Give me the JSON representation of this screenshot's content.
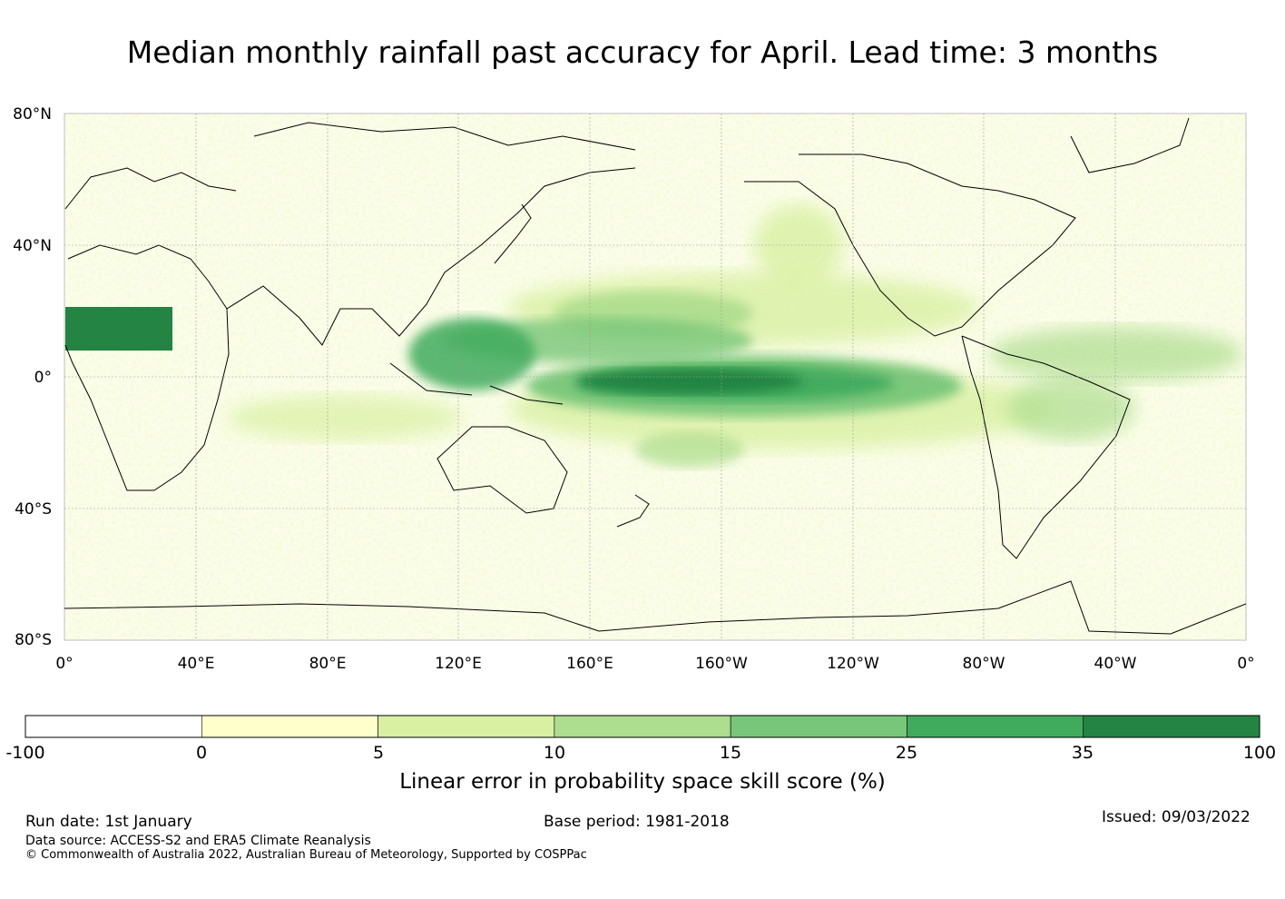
{
  "title": "Median monthly rainfall past accuracy for April. Lead time: 3 months",
  "map": {
    "lat_labels": [
      "80°N",
      "40°N",
      "0°",
      "40°S",
      "80°S"
    ],
    "lon_labels": [
      "0°",
      "40°E",
      "80°E",
      "120°E",
      "160°E",
      "160°W",
      "120°W",
      "80°W",
      "40°W",
      "0°"
    ],
    "grid_color": "#999999",
    "coast_color": "#000000"
  },
  "colorbar": {
    "label": "Linear error in probability space skill score (%)",
    "ticks": [
      "-100",
      "0",
      "5",
      "10",
      "15",
      "25",
      "35",
      "100"
    ],
    "colors": [
      "#ffffff",
      "#ffffcc",
      "#d9f0a3",
      "#addd8e",
      "#78c679",
      "#41ab5d",
      "#238443"
    ]
  },
  "footer": {
    "run_date": "Run date: 1st January",
    "base_period": "Base period: 1981-2018",
    "issued": "Issued: 09/03/2022",
    "data_source": "Data source: ACCESS-S2 and ERA5 Climate Reanalysis",
    "copyright": "© Commonwealth of Australia 2022, Australian Bureau of Meteorology, Supported by COSPPac"
  }
}
